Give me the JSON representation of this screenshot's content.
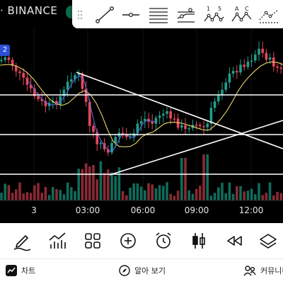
{
  "header": {
    "exchange_label": "· BINANCE",
    "left_tag": "2"
  },
  "drawing_tools": [
    {
      "name": "trend-line"
    },
    {
      "name": "horizontal-ray"
    },
    {
      "name": "horizontal-lines"
    },
    {
      "name": "parallel-channel"
    },
    {
      "name": "pattern-1-5",
      "label_a": "1",
      "label_b": "5"
    },
    {
      "name": "pattern-abc",
      "label_a": "A",
      "label_b": "C"
    },
    {
      "name": "projection"
    }
  ],
  "x_axis": {
    "labels": [
      "3",
      "03:00",
      "06:00",
      "09:00",
      "12:00"
    ]
  },
  "bottom_toolbar": [
    {
      "name": "draw-tool"
    },
    {
      "name": "indicators"
    },
    {
      "name": "layouts"
    },
    {
      "name": "add"
    },
    {
      "name": "alerts"
    },
    {
      "name": "chart-type"
    },
    {
      "name": "replay"
    },
    {
      "name": "layers"
    }
  ],
  "nav": {
    "chart": "차트",
    "ideas": "알아 보기",
    "community": "커뮤니티"
  },
  "colors": {
    "up": "#1fa08c",
    "down": "#e8475b",
    "ma": "#e6d56a",
    "ma_fast": "#5b6ee8",
    "volume_up": "#0f6b5a",
    "volume_down": "#8a2a33",
    "drawing": "#ffffff"
  }
}
